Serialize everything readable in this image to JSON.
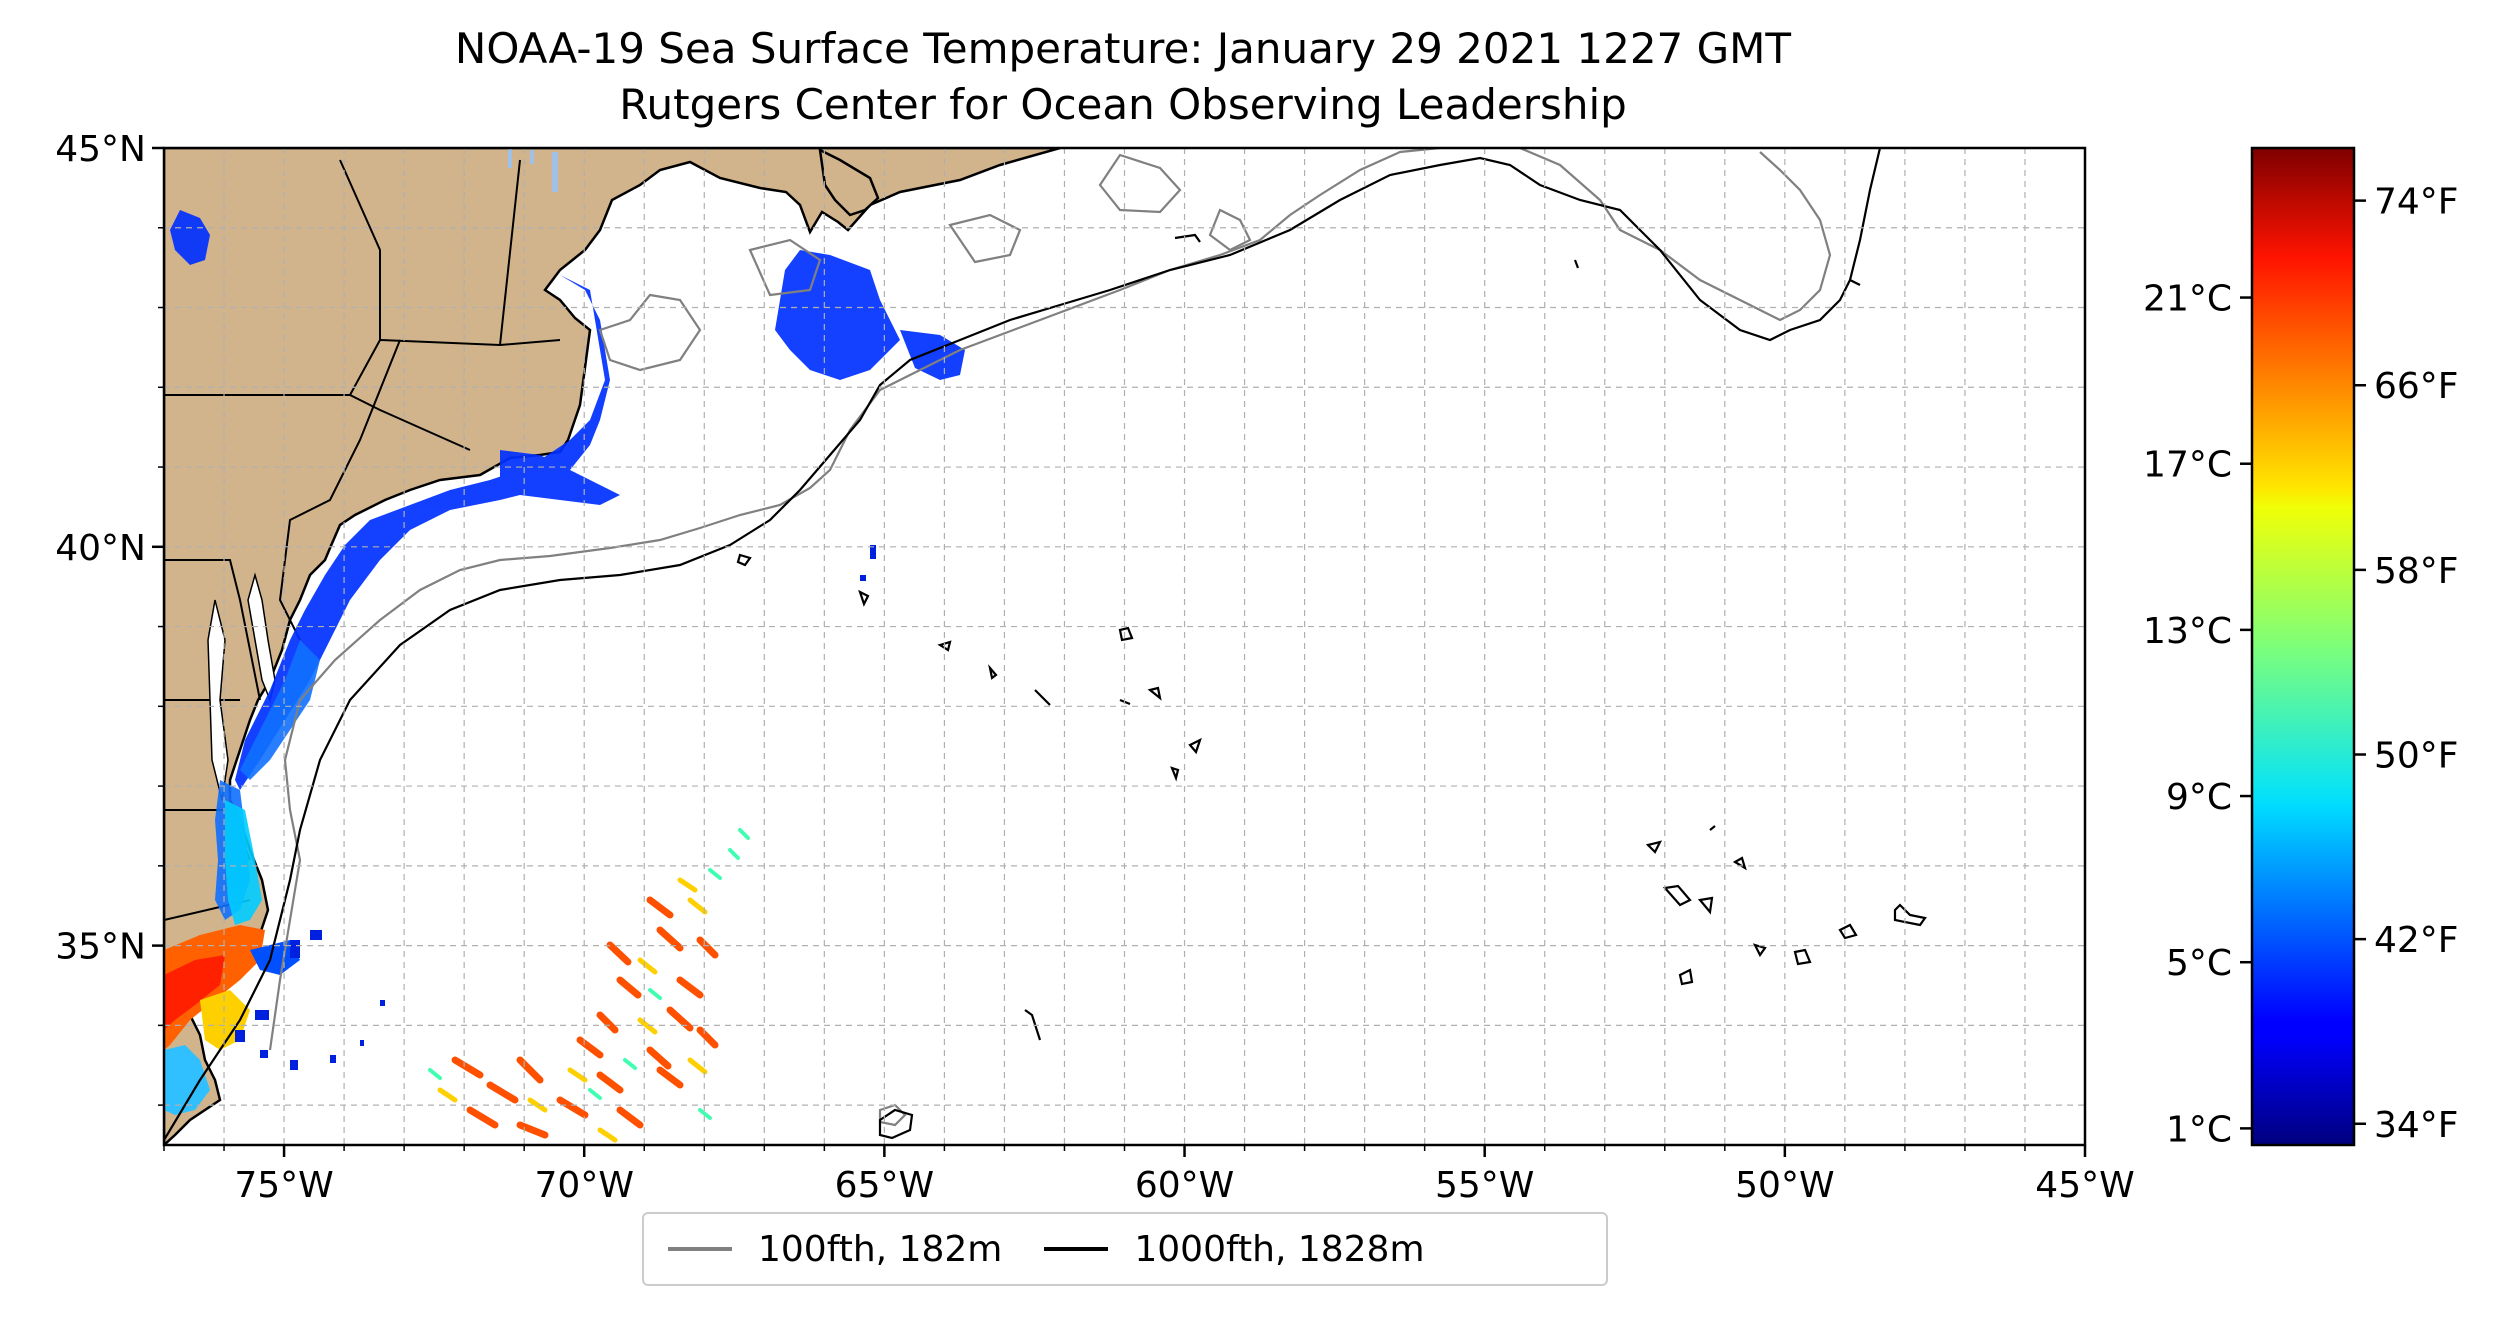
{
  "title_line1": "NOAA-19 Sea Surface Temperature: January 29 2021 1227 GMT",
  "title_line2": "Rutgers Center for Ocean Observing Leadership",
  "map": {
    "lon_range": [
      -77,
      -45
    ],
    "lat_range": [
      32.5,
      45
    ],
    "x_ticks": [
      {
        "lon": -75,
        "label": "75°W"
      },
      {
        "lon": -70,
        "label": "70°W"
      },
      {
        "lon": -65,
        "label": "65°W"
      },
      {
        "lon": -60,
        "label": "60°W"
      },
      {
        "lon": -55,
        "label": "55°W"
      },
      {
        "lon": -50,
        "label": "50°W"
      },
      {
        "lon": -45,
        "label": "45°W"
      }
    ],
    "y_ticks": [
      {
        "lat": 45,
        "label": "45°N"
      },
      {
        "lat": 40,
        "label": "40°N"
      },
      {
        "lat": 35,
        "label": "35°N"
      }
    ],
    "gridlines": true,
    "land_color": "#d2b48c",
    "ocean_color": "#ffffff"
  },
  "colorbar": {
    "colormap": "jet",
    "range_c": [
      0.6,
      24.6
    ],
    "celsius_ticks": [
      {
        "value": 1,
        "label": "1°C"
      },
      {
        "value": 5,
        "label": "5°C"
      },
      {
        "value": 9,
        "label": "9°C"
      },
      {
        "value": 13,
        "label": "13°C"
      },
      {
        "value": 17,
        "label": "17°C"
      },
      {
        "value": 21,
        "label": "21°C"
      }
    ],
    "fahrenheit_ticks": [
      {
        "value": 34,
        "label": "34°F"
      },
      {
        "value": 42,
        "label": "42°F"
      },
      {
        "value": 50,
        "label": "50°F"
      },
      {
        "value": 58,
        "label": "58°F"
      },
      {
        "value": 66,
        "label": "66°F"
      },
      {
        "value": 74,
        "label": "74°F"
      }
    ]
  },
  "legend": [
    {
      "label": "100fth, 182m",
      "color": "#808080"
    },
    {
      "label": "1000fth, 1828m",
      "color": "#000000"
    }
  ]
}
